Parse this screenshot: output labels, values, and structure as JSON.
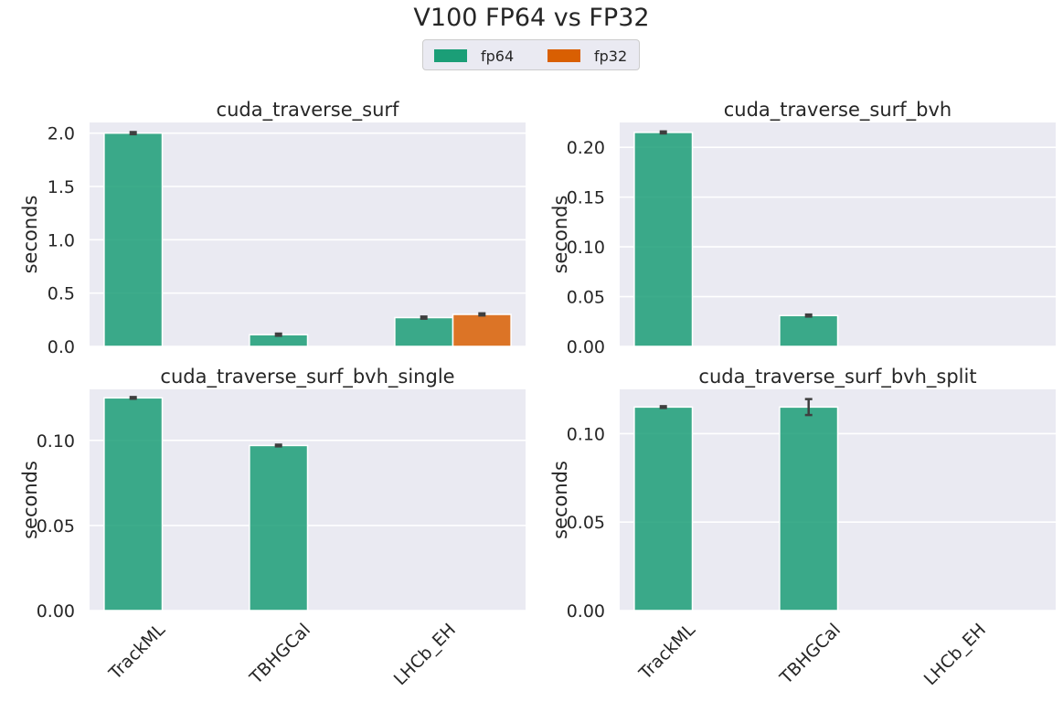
{
  "figure": {
    "title": "V100 FP64 vs FP32",
    "legend": [
      {
        "label": "fp64",
        "color": "#1b9e77"
      },
      {
        "label": "fp32",
        "color": "#d95f02"
      }
    ]
  },
  "chart_data": [
    {
      "type": "bar",
      "title": "cuda_traverse_surf",
      "xlabel": "",
      "ylabel": "seconds",
      "categories": [
        "TrackML",
        "TBHGCal",
        "LHCb_EH"
      ],
      "series": [
        {
          "name": "fp64",
          "values": [
            2.0,
            0.11,
            0.27
          ],
          "errors": [
            0.01,
            0.01,
            0.01
          ]
        },
        {
          "name": "fp32",
          "values": [
            null,
            null,
            0.3
          ],
          "errors": [
            null,
            null,
            0.01
          ]
        }
      ],
      "ylim": [
        0,
        2.1
      ],
      "yticks": [
        "0.0",
        "0.5",
        "1.0",
        "1.5",
        "2.0"
      ],
      "show_xticklabels": false,
      "grid": true
    },
    {
      "type": "bar",
      "title": "cuda_traverse_surf_bvh",
      "xlabel": "",
      "ylabel": "seconds",
      "categories": [
        "TrackML",
        "TBHGCal",
        "LHCb_EH"
      ],
      "series": [
        {
          "name": "fp64",
          "values": [
            0.215,
            0.031,
            null
          ],
          "errors": [
            0.001,
            0.001,
            null
          ]
        },
        {
          "name": "fp32",
          "values": [
            null,
            null,
            null
          ],
          "errors": [
            null,
            null,
            null
          ]
        }
      ],
      "ylim": [
        0,
        0.225
      ],
      "yticks": [
        "0.00",
        "0.05",
        "0.10",
        "0.15",
        "0.20"
      ],
      "show_xticklabels": false,
      "grid": true
    },
    {
      "type": "bar",
      "title": "cuda_traverse_surf_bvh_single",
      "xlabel": "",
      "ylabel": "seconds",
      "categories": [
        "TrackML",
        "TBHGCal",
        "LHCb_EH"
      ],
      "series": [
        {
          "name": "fp64",
          "values": [
            0.125,
            0.097,
            null
          ],
          "errors": [
            0.0005,
            0.0005,
            null
          ]
        },
        {
          "name": "fp32",
          "values": [
            null,
            null,
            null
          ],
          "errors": [
            null,
            null,
            null
          ]
        }
      ],
      "ylim": [
        0,
        0.13
      ],
      "yticks": [
        "0.00",
        "0.05",
        "0.10"
      ],
      "show_xticklabels": true,
      "grid": true
    },
    {
      "type": "bar",
      "title": "cuda_traverse_surf_bvh_split",
      "xlabel": "",
      "ylabel": "seconds",
      "categories": [
        "TrackML",
        "TBHGCal",
        "LHCb_EH"
      ],
      "series": [
        {
          "name": "fp64",
          "values": [
            0.115,
            0.115,
            null
          ],
          "errors": [
            0.0005,
            0.0045,
            null
          ]
        },
        {
          "name": "fp32",
          "values": [
            null,
            null,
            null
          ],
          "errors": [
            null,
            null,
            null
          ]
        }
      ],
      "ylim": [
        0,
        0.125
      ],
      "yticks": [
        "0.00",
        "0.05",
        "0.10"
      ],
      "show_xticklabels": true,
      "grid": true
    }
  ]
}
